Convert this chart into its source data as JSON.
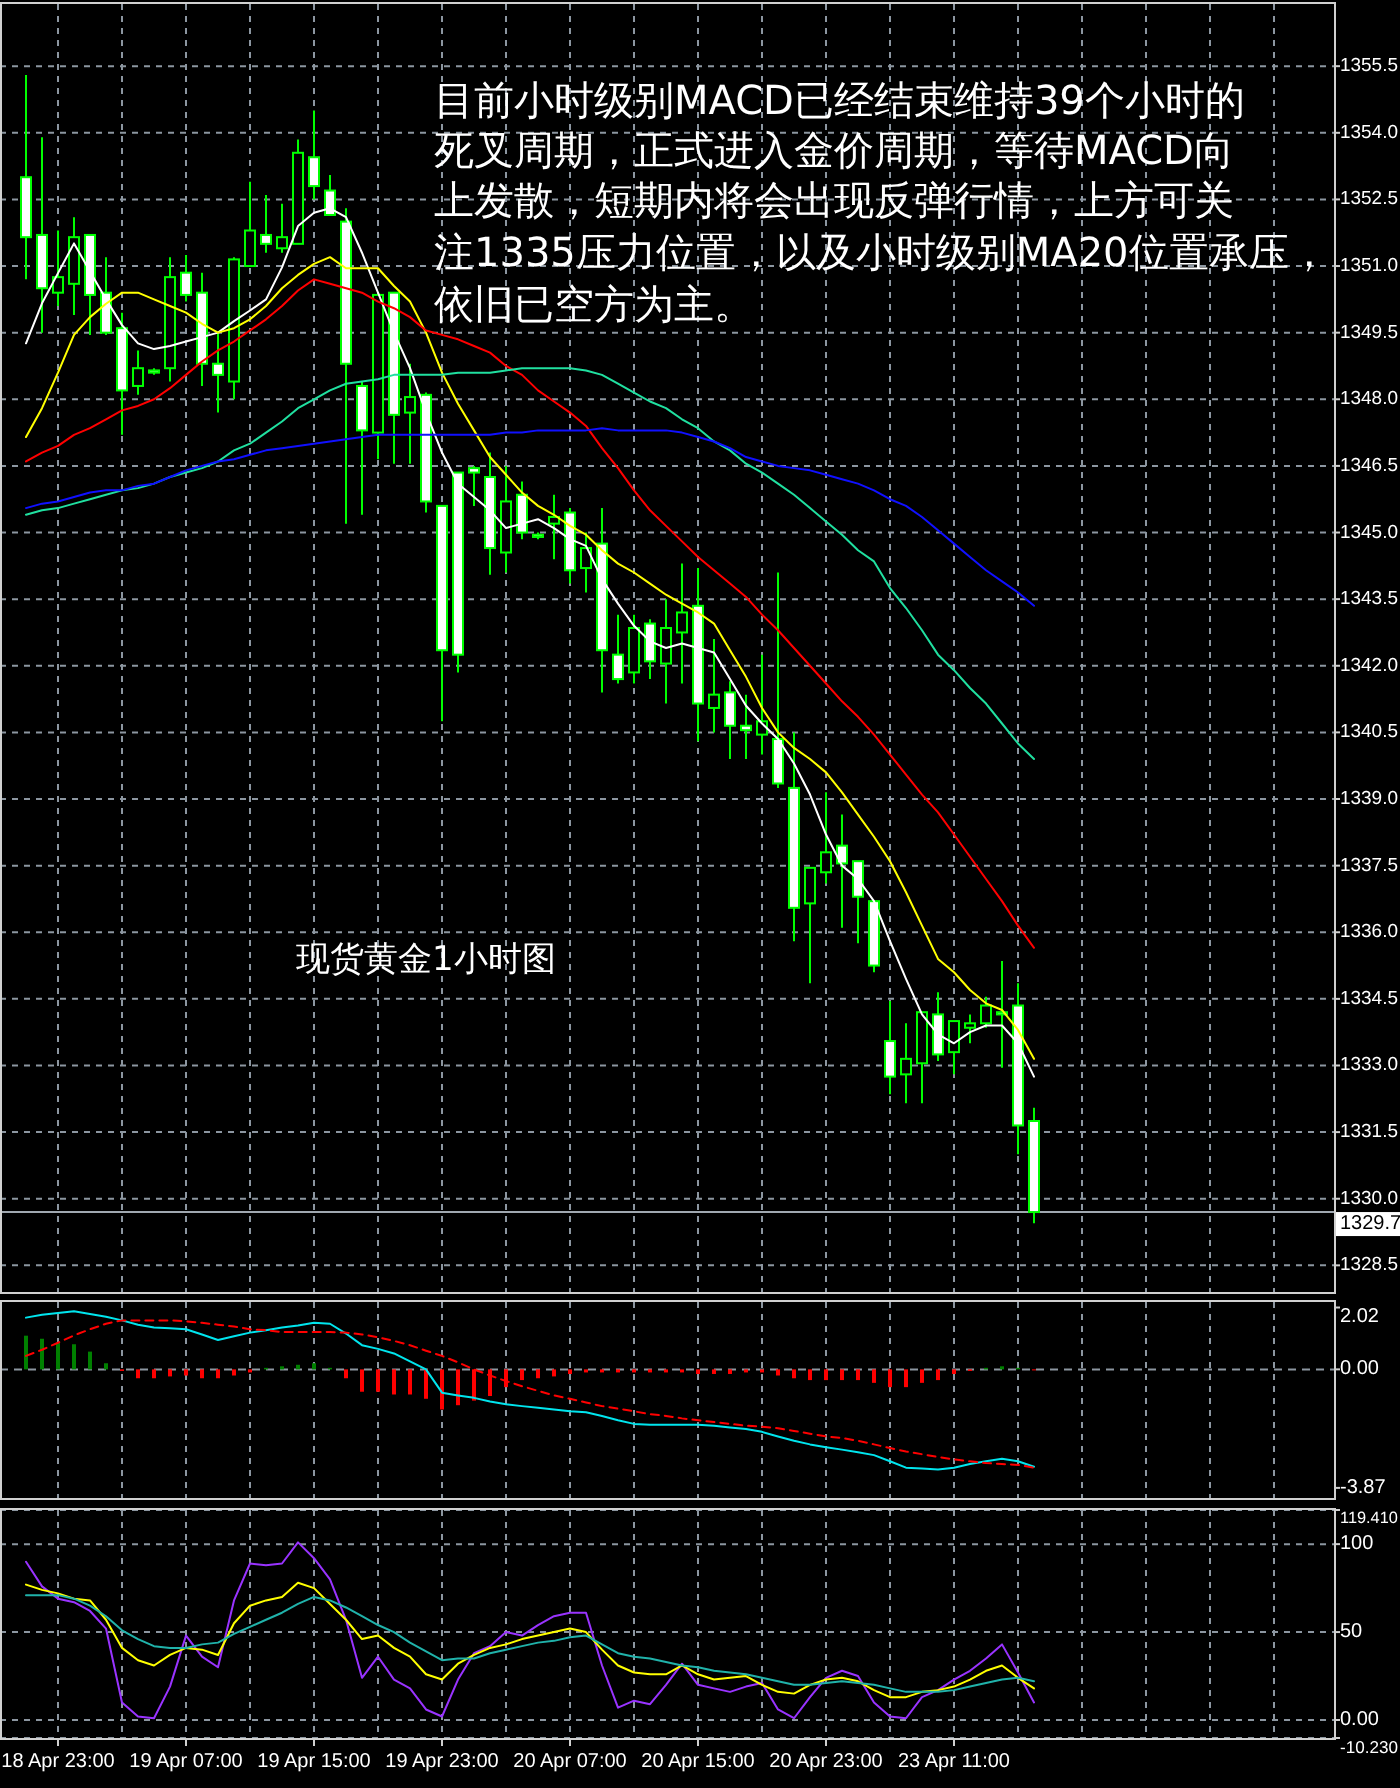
{
  "chart_data": [
    {
      "type": "candlestick",
      "color": "#00ff00",
      "grid": true,
      "tick_labels": "y",
      "categories": [
        null,
        null,
        null,
        null,
        null,
        null,
        null,
        null,
        null,
        null,
        null,
        null,
        null,
        null,
        null,
        null,
        null,
        null,
        null,
        null,
        null,
        null,
        null,
        null,
        null,
        null,
        null,
        null,
        null,
        null,
        null,
        null,
        null,
        null,
        null,
        null,
        null,
        null,
        null,
        null,
        null,
        null,
        null,
        null,
        null,
        null,
        null,
        null,
        null,
        null,
        null,
        null,
        null,
        null,
        null,
        null,
        null,
        null,
        null,
        null,
        null,
        null,
        null,
        null
      ],
      "ohlc": [
        [
          1353.0,
          1355.3,
          1350.7,
          1351.65
        ],
        [
          1351.7,
          1353.9,
          1349.5,
          1350.5
        ],
        [
          1350.4,
          1351.8,
          1350.1,
          1350.75
        ],
        [
          1350.6,
          1352.1,
          1349.9,
          1351.65
        ],
        [
          1351.7,
          1351.7,
          1349.45,
          1350.35
        ],
        [
          1350.4,
          1351.2,
          1349.45,
          1349.5
        ],
        [
          1349.6,
          1349.95,
          1347.2,
          1348.2
        ],
        [
          1348.3,
          1349.1,
          1348.1,
          1348.7
        ],
        [
          1348.65,
          1348.7,
          1348.55,
          1348.6
        ],
        [
          1348.7,
          1351.2,
          1348.4,
          1350.75
        ],
        [
          1350.85,
          1351.25,
          1350.2,
          1350.35
        ],
        [
          1350.4,
          1350.85,
          1348.3,
          1348.8
        ],
        [
          1348.8,
          1349.5,
          1347.7,
          1348.55
        ],
        [
          1348.4,
          1351.2,
          1348.0,
          1351.15
        ],
        [
          1351.0,
          1352.9,
          1351.0,
          1351.8
        ],
        [
          1351.7,
          1352.6,
          1351.3,
          1351.5
        ],
        [
          1351.4,
          1352.4,
          1351.3,
          1351.65
        ],
        [
          1351.5,
          1353.85,
          1351.5,
          1353.55
        ],
        [
          1353.45,
          1354.5,
          1352.5,
          1352.8
        ],
        [
          1352.7,
          1353.05,
          1352.15,
          1352.15
        ],
        [
          1352.0,
          1352.3,
          1345.2,
          1348.8
        ],
        [
          1348.3,
          1348.4,
          1345.4,
          1347.3
        ],
        [
          1347.25,
          1350.35,
          1346.65,
          1350.35
        ],
        [
          1350.4,
          1350.4,
          1346.55,
          1347.65
        ],
        [
          1347.7,
          1348.8,
          1346.55,
          1348.05
        ],
        [
          1348.1,
          1348.15,
          1345.45,
          1345.7
        ],
        [
          1345.6,
          1345.6,
          1340.75,
          1342.35
        ],
        [
          1346.35,
          1346.35,
          1341.85,
          1342.25
        ],
        [
          1346.45,
          1346.5,
          1345.6,
          1346.35
        ],
        [
          1346.25,
          1346.8,
          1344.05,
          1344.65
        ],
        [
          1344.55,
          1346.5,
          1344.1,
          1345.7
        ],
        [
          1345.85,
          1346.15,
          1344.85,
          1345.0
        ],
        [
          1344.95,
          1345.0,
          1344.85,
          1344.9
        ],
        [
          1345.2,
          1345.85,
          1344.4,
          1345.35
        ],
        [
          1345.45,
          1345.55,
          1343.85,
          1344.15
        ],
        [
          1344.2,
          1345.0,
          1343.65,
          1344.65
        ],
        [
          1344.75,
          1345.55,
          1341.4,
          1342.35
        ],
        [
          1342.25,
          1343.15,
          1341.6,
          1341.7
        ],
        [
          1341.85,
          1343.15,
          1341.6,
          1342.85
        ],
        [
          1342.95,
          1343.05,
          1341.7,
          1342.1
        ],
        [
          1342.05,
          1343.5,
          1341.15,
          1342.85
        ],
        [
          1342.75,
          1344.3,
          1341.6,
          1343.2
        ],
        [
          1343.35,
          1344.2,
          1340.3,
          1341.15
        ],
        [
          1341.05,
          1342.6,
          1340.5,
          1341.35
        ],
        [
          1341.4,
          1341.65,
          1339.9,
          1340.65
        ],
        [
          1340.65,
          1341.35,
          1339.9,
          1340.55
        ],
        [
          1340.45,
          1342.25,
          1340.0,
          1340.75
        ],
        [
          1340.35,
          1344.1,
          1339.25,
          1339.35
        ],
        [
          1339.25,
          1340.5,
          1335.8,
          1336.55
        ],
        [
          1336.65,
          1337.45,
          1334.85,
          1337.45
        ],
        [
          1337.35,
          1339.15,
          1337.1,
          1337.8
        ],
        [
          1337.95,
          1338.65,
          1336.1,
          1337.55
        ],
        [
          1337.6,
          1337.6,
          1335.75,
          1336.8
        ],
        [
          1336.7,
          1336.7,
          1335.1,
          1335.25
        ],
        [
          1333.55,
          1334.45,
          1332.35,
          1332.75
        ],
        [
          1332.8,
          1333.95,
          1332.15,
          1333.15
        ],
        [
          1333.05,
          1334.2,
          1332.15,
          1334.2
        ],
        [
          1334.15,
          1334.65,
          1333.1,
          1333.25
        ],
        [
          1333.3,
          1334.0,
          1332.8,
          1334.0
        ],
        [
          1333.85,
          1334.15,
          1333.5,
          1333.95
        ],
        [
          1333.95,
          1334.55,
          1333.85,
          1334.35
        ],
        [
          1334.2,
          1335.35,
          1332.95,
          1334.15
        ],
        [
          1334.35,
          1334.85,
          1331.0,
          1331.65
        ],
        [
          1331.75,
          1332.05,
          1329.45,
          1329.7
        ]
      ],
      "series": [
        {
          "type": "line",
          "color": "#ffffff",
          "values": [
            1349.26,
            1350.16,
            1350.84,
            1351.51,
            1350.88,
            1350.25,
            1349.67,
            1349.26,
            1349.13,
            1349.2,
            1349.3,
            1349.4,
            1349.5,
            1349.76,
            1350.0,
            1350.25,
            1350.97,
            1351.9,
            1352.2,
            1352.3,
            1352.1,
            1351.3,
            1350.4,
            1349.5,
            1348.7,
            1347.7,
            1346.8,
            1346.1,
            1345.8,
            1345.5,
            1345.1,
            1345.2,
            1345.3,
            1345.1,
            1344.85,
            1344.7,
            1343.95,
            1343.4,
            1342.9,
            1342.55,
            1342.4,
            1342.5,
            1342.4,
            1342.3,
            1341.7,
            1341.1,
            1340.7,
            1340.35,
            1339.8,
            1339.1,
            1338.2,
            1337.5,
            1337.2,
            1336.7,
            1335.8,
            1334.95,
            1334.15,
            1333.7,
            1333.5,
            1333.75,
            1333.9,
            1333.9,
            1333.5,
            1332.75
          ]
        },
        {
          "type": "line",
          "color": "#ffff00",
          "values": [
            1347.15,
            1347.8,
            1348.6,
            1349.45,
            1349.85,
            1350.15,
            1350.4,
            1350.4,
            1350.25,
            1350.1,
            1349.95,
            1349.7,
            1349.5,
            1349.6,
            1349.8,
            1350.1,
            1350.5,
            1350.8,
            1351.05,
            1351.2,
            1350.95,
            1350.95,
            1350.95,
            1350.55,
            1350.2,
            1349.5,
            1348.6,
            1347.9,
            1347.3,
            1346.7,
            1346.3,
            1345.9,
            1345.6,
            1345.4,
            1345.15,
            1344.95,
            1344.6,
            1344.3,
            1344.1,
            1343.85,
            1343.6,
            1343.4,
            1343.2,
            1342.95,
            1342.35,
            1341.75,
            1341.05,
            1340.5,
            1340.15,
            1339.9,
            1339.6,
            1339.15,
            1338.65,
            1338.15,
            1337.6,
            1336.9,
            1336.15,
            1335.4,
            1335.1,
            1334.7,
            1334.4,
            1334.25,
            1333.8,
            1333.15
          ]
        },
        {
          "type": "line",
          "color": "#ff0000",
          "values": [
            1346.6,
            1346.8,
            1346.95,
            1347.2,
            1347.35,
            1347.55,
            1347.75,
            1347.85,
            1348.0,
            1348.25,
            1348.55,
            1348.85,
            1349.1,
            1349.3,
            1349.55,
            1349.8,
            1350.1,
            1350.45,
            1350.7,
            1350.6,
            1350.5,
            1350.4,
            1350.2,
            1350.05,
            1349.85,
            1349.55,
            1349.45,
            1349.35,
            1349.2,
            1349.05,
            1348.75,
            1348.55,
            1348.2,
            1347.95,
            1347.7,
            1347.4,
            1346.9,
            1346.45,
            1345.95,
            1345.5,
            1345.15,
            1344.8,
            1344.45,
            1344.15,
            1343.85,
            1343.55,
            1343.15,
            1342.8,
            1342.4,
            1342.0,
            1341.6,
            1341.2,
            1340.85,
            1340.45,
            1340.0,
            1339.55,
            1339.1,
            1338.7,
            1338.2,
            1337.7,
            1337.2,
            1336.7,
            1336.15,
            1335.65
          ]
        },
        {
          "type": "line",
          "color": "#20e0a0",
          "values": [
            1345.4,
            1345.5,
            1345.55,
            1345.65,
            1345.75,
            1345.85,
            1345.95,
            1346.0,
            1346.1,
            1346.25,
            1346.35,
            1346.45,
            1346.6,
            1346.85,
            1347.0,
            1347.25,
            1347.5,
            1347.8,
            1348.0,
            1348.2,
            1348.35,
            1348.4,
            1348.45,
            1348.55,
            1348.55,
            1348.55,
            1348.55,
            1348.6,
            1348.6,
            1348.6,
            1348.65,
            1348.7,
            1348.7,
            1348.7,
            1348.7,
            1348.65,
            1348.55,
            1348.35,
            1348.15,
            1347.95,
            1347.8,
            1347.55,
            1347.35,
            1347.05,
            1346.85,
            1346.55,
            1346.35,
            1346.1,
            1345.85,
            1345.55,
            1345.25,
            1344.95,
            1344.6,
            1344.35,
            1343.75,
            1343.3,
            1342.8,
            1342.25,
            1341.9,
            1341.5,
            1341.15,
            1340.7,
            1340.25,
            1339.9
          ]
        },
        {
          "type": "line",
          "color": "#1010ff",
          "values": [
            1345.55,
            1345.65,
            1345.7,
            1345.8,
            1345.9,
            1345.95,
            1345.95,
            1346.05,
            1346.1,
            1346.25,
            1346.4,
            1346.5,
            1346.6,
            1346.65,
            1346.75,
            1346.85,
            1346.9,
            1346.95,
            1347.0,
            1347.05,
            1347.1,
            1347.15,
            1347.2,
            1347.2,
            1347.2,
            1347.2,
            1347.2,
            1347.2,
            1347.2,
            1347.2,
            1347.25,
            1347.25,
            1347.3,
            1347.3,
            1347.3,
            1347.3,
            1347.35,
            1347.3,
            1347.3,
            1347.3,
            1347.3,
            1347.25,
            1347.15,
            1347.05,
            1346.9,
            1346.7,
            1346.6,
            1346.5,
            1346.45,
            1346.4,
            1346.3,
            1346.2,
            1346.1,
            1345.95,
            1345.75,
            1345.6,
            1345.35,
            1345.05,
            1344.75,
            1344.45,
            1344.15,
            1343.9,
            1343.65,
            1343.35
          ]
        }
      ],
      "ylim": [
        1327.9,
        1356.9
      ],
      "yticks": [
        1328.5,
        {
          "value": 1330,
          "label": "1330.0"
        },
        1331.5,
        {
          "value": 1333,
          "label": "1333.0"
        },
        1334.5,
        {
          "value": 1336,
          "label": "1336.0"
        },
        1337.5,
        {
          "value": 1339,
          "label": "1339.0"
        },
        1340.5,
        {
          "value": 1342,
          "label": "1342.0"
        },
        1343.5,
        {
          "value": 1345,
          "label": "1345.0"
        },
        1346.5,
        {
          "value": 1348,
          "label": "1348.0"
        },
        1349.5,
        {
          "value": 1351,
          "label": "1351.0"
        },
        1352.5,
        {
          "value": 1354,
          "label": "1354.0"
        },
        1355.5
      ],
      "ref_lines": [
        {
          "axis": "y",
          "value": 1329.7,
          "label": "1329.7",
          "color": "#a0a8b0"
        }
      ],
      "annotations": [
        "目前小时级别MACD已经结束维持39个小时的",
        "死叉周期，正式进入金价周期，等待MACD向",
        "上发散，短期内将会出现反弹行情，上方可关",
        "注1335压力位置，以及小时级别MA20位置承压，",
        "依旧已空方为主。",
        "现货黄金1小时图"
      ]
    },
    {
      "type": "bar",
      "grid": "x",
      "tick_labels": "y",
      "categories": [
        null,
        null,
        null,
        null,
        null,
        null,
        null,
        null,
        null,
        null,
        null,
        null,
        null,
        null,
        null,
        null,
        null,
        null,
        null,
        null,
        null,
        null,
        null,
        null,
        null,
        null,
        null,
        null,
        null,
        null,
        null,
        null,
        null,
        null,
        null,
        null,
        null,
        null,
        null,
        null,
        null,
        null,
        null,
        null,
        null,
        null,
        null,
        null,
        null,
        null,
        null,
        null,
        null,
        null,
        null,
        null,
        null,
        null,
        null,
        null,
        null,
        null,
        null,
        null
      ],
      "values": [
        1.1,
        1.0,
        0.87,
        0.82,
        0.58,
        0.2,
        -0.05,
        -0.29,
        -0.29,
        -0.23,
        -0.2,
        -0.29,
        -0.29,
        -0.2,
        -0.1,
        0.05,
        0.1,
        0.15,
        0.2,
        0.05,
        -0.29,
        -0.73,
        -0.73,
        -0.82,
        -0.82,
        -0.96,
        -1.31,
        -1.17,
        -1.02,
        -0.87,
        -0.58,
        -0.35,
        -0.29,
        -0.23,
        -0.15,
        -0.1,
        -0.1,
        -0.1,
        -0.1,
        -0.1,
        -0.1,
        -0.1,
        -0.15,
        -0.15,
        -0.15,
        -0.1,
        -0.1,
        -0.2,
        -0.29,
        -0.35,
        -0.35,
        -0.35,
        -0.35,
        -0.44,
        -0.58,
        -0.58,
        -0.44,
        -0.35,
        -0.15,
        -0.05,
        0.05,
        0.1,
        0.05,
        0.0
      ],
      "colors": [
        "#008000",
        "#008000",
        "#008000",
        "#008000",
        "#008000",
        "#008000",
        "#ff0000",
        "#ff0000",
        "#ff0000",
        "#ff0000",
        "#ff0000",
        "#ff0000",
        "#ff0000",
        "#ff0000",
        "#ff0000",
        "#008000",
        "#008000",
        "#008000",
        "#008000",
        "#008000",
        "#ff0000",
        "#ff0000",
        "#ff0000",
        "#ff0000",
        "#ff0000",
        "#ff0000",
        "#ff0000",
        "#ff0000",
        "#ff0000",
        "#ff0000",
        "#ff0000",
        "#ff0000",
        "#ff0000",
        "#ff0000",
        "#ff0000",
        "#ff0000",
        "#ff0000",
        "#ff0000",
        "#ff0000",
        "#ff0000",
        "#ff0000",
        "#ff0000",
        "#ff0000",
        "#ff0000",
        "#ff0000",
        "#ff0000",
        "#ff0000",
        "#ff0000",
        "#ff0000",
        "#ff0000",
        "#ff0000",
        "#ff0000",
        "#ff0000",
        "#ff0000",
        "#ff0000",
        "#ff0000",
        "#ff0000",
        "#ff0000",
        "#ff0000",
        "#ff0000",
        "#008000",
        "#008000",
        "#008000",
        "#ff0000"
      ],
      "series": [
        {
          "type": "line",
          "color": "#00e5ee",
          "values": [
            1.69,
            1.78,
            1.84,
            1.9,
            1.81,
            1.72,
            1.6,
            1.46,
            1.37,
            1.34,
            1.31,
            1.14,
            0.96,
            1.08,
            1.2,
            1.28,
            1.37,
            1.43,
            1.52,
            1.49,
            1.17,
            0.79,
            0.67,
            0.52,
            0.26,
            0.0,
            -0.76,
            -0.85,
            -0.93,
            -1.05,
            -1.14,
            -1.2,
            -1.25,
            -1.31,
            -1.37,
            -1.4,
            -1.52,
            -1.66,
            -1.78,
            -1.81,
            -1.81,
            -1.81,
            -1.81,
            -1.84,
            -1.9,
            -1.95,
            -2.04,
            -2.19,
            -2.33,
            -2.45,
            -2.54,
            -2.62,
            -2.71,
            -2.8,
            -3.0,
            -3.21,
            -3.24,
            -3.27,
            -3.21,
            -3.09,
            -3.0,
            -2.92,
            -3.0,
            -3.18
          ]
        },
        {
          "type": "line",
          "color": "#ff0000",
          "line_style": "dashed",
          "values": [
            0.44,
            0.64,
            0.87,
            1.11,
            1.31,
            1.49,
            1.6,
            1.6,
            1.6,
            1.6,
            1.57,
            1.52,
            1.46,
            1.4,
            1.31,
            1.28,
            1.22,
            1.22,
            1.22,
            1.22,
            1.2,
            1.14,
            1.05,
            0.93,
            0.79,
            0.61,
            0.44,
            0.23,
            0.0,
            -0.2,
            -0.38,
            -0.55,
            -0.7,
            -0.85,
            -0.96,
            -1.08,
            -1.2,
            -1.28,
            -1.37,
            -1.46,
            -1.52,
            -1.6,
            -1.66,
            -1.72,
            -1.78,
            -1.84,
            -1.87,
            -1.92,
            -2.01,
            -2.1,
            -2.19,
            -2.24,
            -2.33,
            -2.45,
            -2.57,
            -2.68,
            -2.77,
            -2.86,
            -2.94,
            -3.0,
            -3.06,
            -3.09,
            -3.12,
            -3.21
          ]
        }
      ],
      "ylim": [
        -4.2,
        2.2
      ],
      "yticks": [
        {
          "value": 2.02,
          "label": "2.02"
        },
        {
          "value": 0,
          "label": "0.00"
        },
        {
          "value": -3.87,
          "label": "-3.87"
        }
      ],
      "ref_lines": [
        {
          "axis": "y",
          "value": 0,
          "color": "#8c96a0",
          "line_style": "dashed"
        }
      ]
    },
    {
      "type": "line",
      "grid": true,
      "categories": [
        null,
        null,
        "18 Apr 23:00",
        null,
        null,
        null,
        null,
        null,
        null,
        null,
        "19 Apr 07:00",
        null,
        null,
        null,
        null,
        null,
        null,
        null,
        "19 Apr 15:00",
        null,
        null,
        null,
        null,
        null,
        null,
        null,
        "19 Apr 23:00",
        null,
        null,
        null,
        null,
        null,
        null,
        null,
        "20 Apr 07:00",
        null,
        null,
        null,
        null,
        null,
        null,
        null,
        "20 Apr 15:00",
        null,
        null,
        null,
        null,
        null,
        null,
        null,
        "20 Apr 23:00",
        null,
        null,
        null,
        null,
        null,
        null,
        null,
        "23 Apr 11:00",
        null,
        null,
        null,
        null,
        null
      ],
      "series": [
        {
          "color": "#9933ff",
          "values": [
            90,
            76,
            69,
            67,
            62,
            52,
            10,
            2,
            1,
            19,
            48,
            36,
            30,
            68,
            89,
            88,
            89,
            101,
            92,
            80,
            57,
            24,
            36,
            23,
            18,
            6,
            2,
            23,
            38,
            42,
            50,
            48,
            54,
            59,
            61,
            61,
            31,
            7,
            11,
            9,
            20,
            32,
            20,
            18,
            16,
            19,
            21,
            6,
            1,
            13,
            24,
            28,
            25,
            10,
            2,
            1,
            13,
            17,
            23,
            28,
            35,
            43,
            27,
            10
          ]
        },
        {
          "color": "#ffff00",
          "values": [
            77,
            74,
            72,
            69,
            68,
            57,
            41,
            34,
            31,
            37,
            41,
            40,
            37,
            55,
            65,
            68,
            70,
            78,
            75,
            66,
            57,
            46,
            48,
            41,
            36,
            26,
            23,
            32,
            37,
            41,
            43,
            46,
            48,
            50,
            52,
            50,
            40,
            31,
            27,
            26,
            26,
            31,
            26,
            23,
            24,
            25,
            20,
            16,
            15,
            20,
            23,
            24,
            22,
            17,
            13,
            13,
            16,
            17,
            19,
            23,
            28,
            31,
            24,
            18
          ]
        },
        {
          "color": "#20b2aa",
          "values": [
            71,
            71,
            71,
            69,
            65,
            59,
            51,
            46,
            42,
            41,
            41,
            43,
            44,
            49,
            53,
            57,
            61,
            66,
            70,
            68,
            64,
            59,
            54,
            50,
            44,
            39,
            34,
            35,
            35,
            38,
            40,
            42,
            44,
            45,
            47,
            48,
            43,
            38,
            36,
            35,
            33,
            31,
            30,
            28,
            27,
            26,
            24,
            22,
            20,
            20,
            21,
            22,
            21,
            20,
            18,
            16,
            16,
            16,
            17,
            19,
            21,
            23,
            24,
            22
          ]
        }
      ],
      "ylim": [
        -10.23,
        119.41
      ],
      "yticks": [
        {
          "value": 119.41,
          "label": "119.410"
        },
        100,
        50,
        {
          "value": 0,
          "label": "0.00"
        },
        {
          "value": -10.23,
          "label": "-10.230"
        }
      ]
    }
  ]
}
